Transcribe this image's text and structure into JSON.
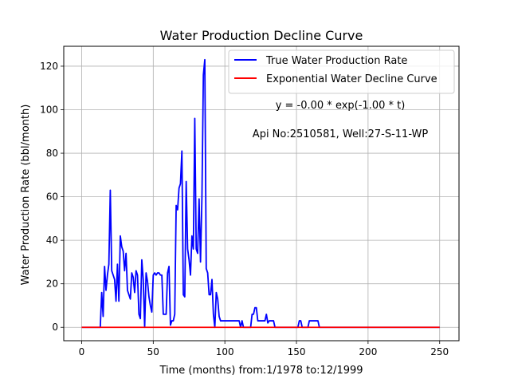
{
  "chart_data": {
    "type": "line",
    "title": "Water Production Decline Curve",
    "xlabel": "Time (months) from:1/1978 to:12/1999",
    "ylabel": "Water Production Rate (bbl/month)",
    "xlim": [
      -12.5,
      263.5
    ],
    "ylim": [
      -6.15,
      129.15
    ],
    "xticks": [
      0,
      50,
      100,
      150,
      200,
      250
    ],
    "yticks": [
      0,
      20,
      40,
      60,
      80,
      100,
      120
    ],
    "grid": true,
    "legend_position": "top-right",
    "annotations": [
      "y = -0.00 * exp(-1.00 * t)",
      "Api No:2510581, Well:27-S-11-WP"
    ],
    "series": [
      {
        "name": "True Water Production Rate",
        "color": "#0000ff",
        "points": [
          [
            0,
            0
          ],
          [
            13,
            0
          ],
          [
            14,
            16
          ],
          [
            15,
            5
          ],
          [
            16,
            28
          ],
          [
            17,
            17
          ],
          [
            18,
            24
          ],
          [
            19,
            29
          ],
          [
            20,
            63
          ],
          [
            21,
            26
          ],
          [
            22,
            24
          ],
          [
            23,
            22
          ],
          [
            24,
            12
          ],
          [
            25,
            29
          ],
          [
            26,
            12
          ],
          [
            27,
            42
          ],
          [
            28,
            37
          ],
          [
            29,
            35
          ],
          [
            30,
            26
          ],
          [
            31,
            34
          ],
          [
            32,
            17
          ],
          [
            33,
            15
          ],
          [
            34,
            13
          ],
          [
            35,
            25
          ],
          [
            36,
            23
          ],
          [
            37,
            16
          ],
          [
            38,
            26
          ],
          [
            39,
            24
          ],
          [
            40,
            6
          ],
          [
            41,
            4
          ],
          [
            42,
            31
          ],
          [
            43,
            22
          ],
          [
            44,
            0
          ],
          [
            45,
            25
          ],
          [
            46,
            21
          ],
          [
            47,
            14
          ],
          [
            48,
            10
          ],
          [
            49,
            7
          ],
          [
            50,
            24
          ],
          [
            51,
            25
          ],
          [
            52,
            24
          ],
          [
            53,
            25
          ],
          [
            54,
            25
          ],
          [
            55,
            24
          ],
          [
            56,
            24
          ],
          [
            57,
            6
          ],
          [
            58,
            6
          ],
          [
            59,
            6
          ],
          [
            60,
            25
          ],
          [
            61,
            28
          ],
          [
            62,
            1
          ],
          [
            63,
            3
          ],
          [
            64,
            3
          ],
          [
            65,
            6
          ],
          [
            66,
            56
          ],
          [
            67,
            54
          ],
          [
            68,
            64
          ],
          [
            69,
            66
          ],
          [
            70,
            81
          ],
          [
            71,
            15
          ],
          [
            72,
            14
          ],
          [
            73,
            67
          ],
          [
            74,
            36
          ],
          [
            75,
            31
          ],
          [
            76,
            24
          ],
          [
            77,
            42
          ],
          [
            78,
            36
          ],
          [
            79,
            96
          ],
          [
            80,
            36
          ],
          [
            81,
            34
          ],
          [
            82,
            59
          ],
          [
            83,
            30
          ],
          [
            84,
            60
          ],
          [
            85,
            116
          ],
          [
            86,
            123
          ],
          [
            87,
            27
          ],
          [
            88,
            25
          ],
          [
            89,
            15
          ],
          [
            90,
            15
          ],
          [
            91,
            22
          ],
          [
            92,
            6
          ],
          [
            93,
            0
          ],
          [
            94,
            16
          ],
          [
            95,
            13
          ],
          [
            96,
            5
          ],
          [
            97,
            3
          ],
          [
            100,
            3
          ],
          [
            110,
            3
          ],
          [
            111,
            0
          ],
          [
            112,
            3
          ],
          [
            113,
            0
          ],
          [
            118,
            0
          ],
          [
            119,
            6
          ],
          [
            120,
            6
          ],
          [
            121,
            9
          ],
          [
            122,
            9
          ],
          [
            123,
            3
          ],
          [
            124,
            3
          ],
          [
            128,
            3
          ],
          [
            129,
            6
          ],
          [
            130,
            2
          ],
          [
            131,
            3
          ],
          [
            133,
            3
          ],
          [
            134,
            3
          ],
          [
            135,
            0
          ],
          [
            151,
            0
          ],
          [
            152,
            3
          ],
          [
            153,
            3
          ],
          [
            154,
            0
          ],
          [
            158,
            0
          ],
          [
            159,
            3
          ],
          [
            160,
            3
          ],
          [
            164,
            3
          ],
          [
            165,
            3
          ],
          [
            166,
            0
          ],
          [
            250,
            0
          ]
        ]
      },
      {
        "name": "Exponential Water Decline Curve",
        "color": "#ff0000",
        "points": [
          [
            0,
            0
          ],
          [
            250,
            0
          ]
        ]
      }
    ]
  }
}
